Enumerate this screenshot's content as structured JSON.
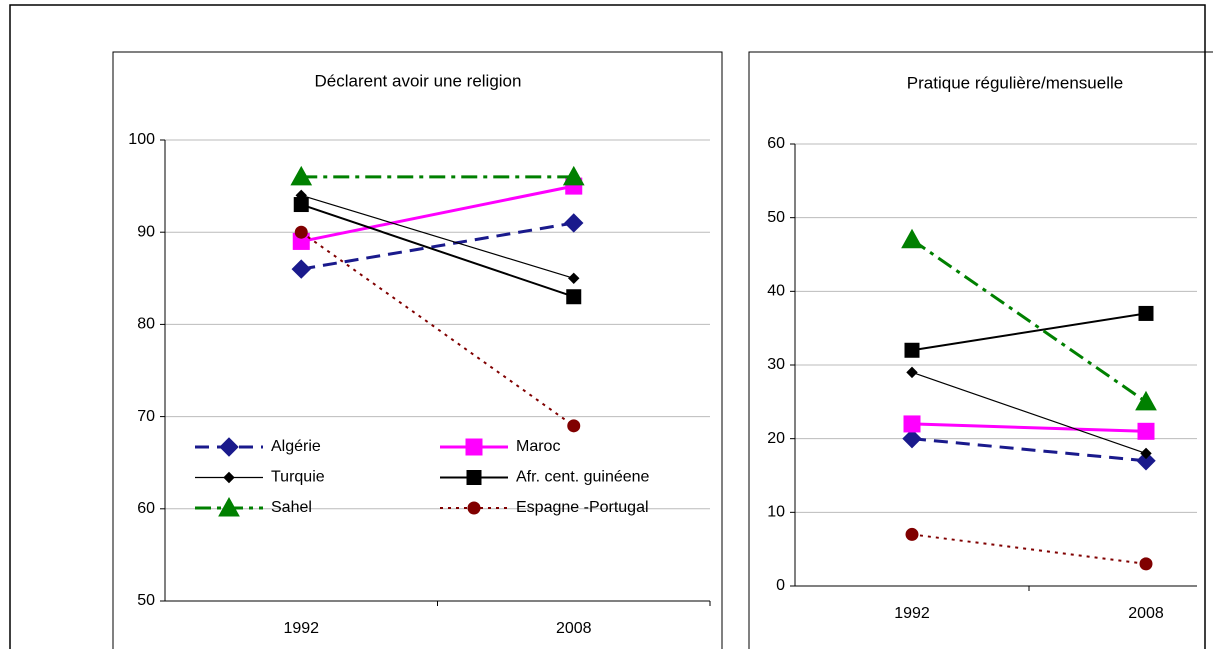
{
  "chart_data": [
    {
      "type": "line",
      "title": "Déclarent avoir une religion",
      "categories": [
        "1992",
        "2008"
      ],
      "ylim": [
        50,
        100
      ],
      "yticks": [
        50,
        60,
        70,
        80,
        90,
        100
      ],
      "grid": true,
      "series": [
        {
          "name": "Algérie",
          "color": "#1a1a8c",
          "values": [
            86,
            91
          ]
        },
        {
          "name": "Maroc",
          "color": "#ff00ff",
          "values": [
            89,
            95
          ]
        },
        {
          "name": "Turquie",
          "color": "#000000",
          "values": [
            94,
            85
          ]
        },
        {
          "name": "Afr. cent. guinéene",
          "color": "#000000",
          "values": [
            93,
            83
          ]
        },
        {
          "name": "Sahel",
          "color": "#008000",
          "values": [
            96,
            96
          ]
        },
        {
          "name": "Espagne -Portugal",
          "color": "#800000",
          "values": [
            90,
            69
          ]
        }
      ]
    },
    {
      "type": "line",
      "title": "Pratique régulière/mensuelle",
      "categories": [
        "1992",
        "2008"
      ],
      "ylim": [
        0,
        60
      ],
      "yticks": [
        0,
        10,
        20,
        30,
        40,
        50,
        60
      ],
      "grid": true,
      "series": [
        {
          "color": "#1a1a8c",
          "values": [
            20,
            17
          ]
        },
        {
          "color": "#ff00ff",
          "values": [
            22,
            21
          ]
        },
        {
          "color": "#000000",
          "values": [
            29,
            18
          ]
        },
        {
          "color": "#000000",
          "values": [
            32,
            37
          ]
        },
        {
          "color": "#008000",
          "values": [
            47,
            25
          ]
        },
        {
          "color": "#800000",
          "values": [
            7,
            3
          ]
        }
      ]
    }
  ]
}
